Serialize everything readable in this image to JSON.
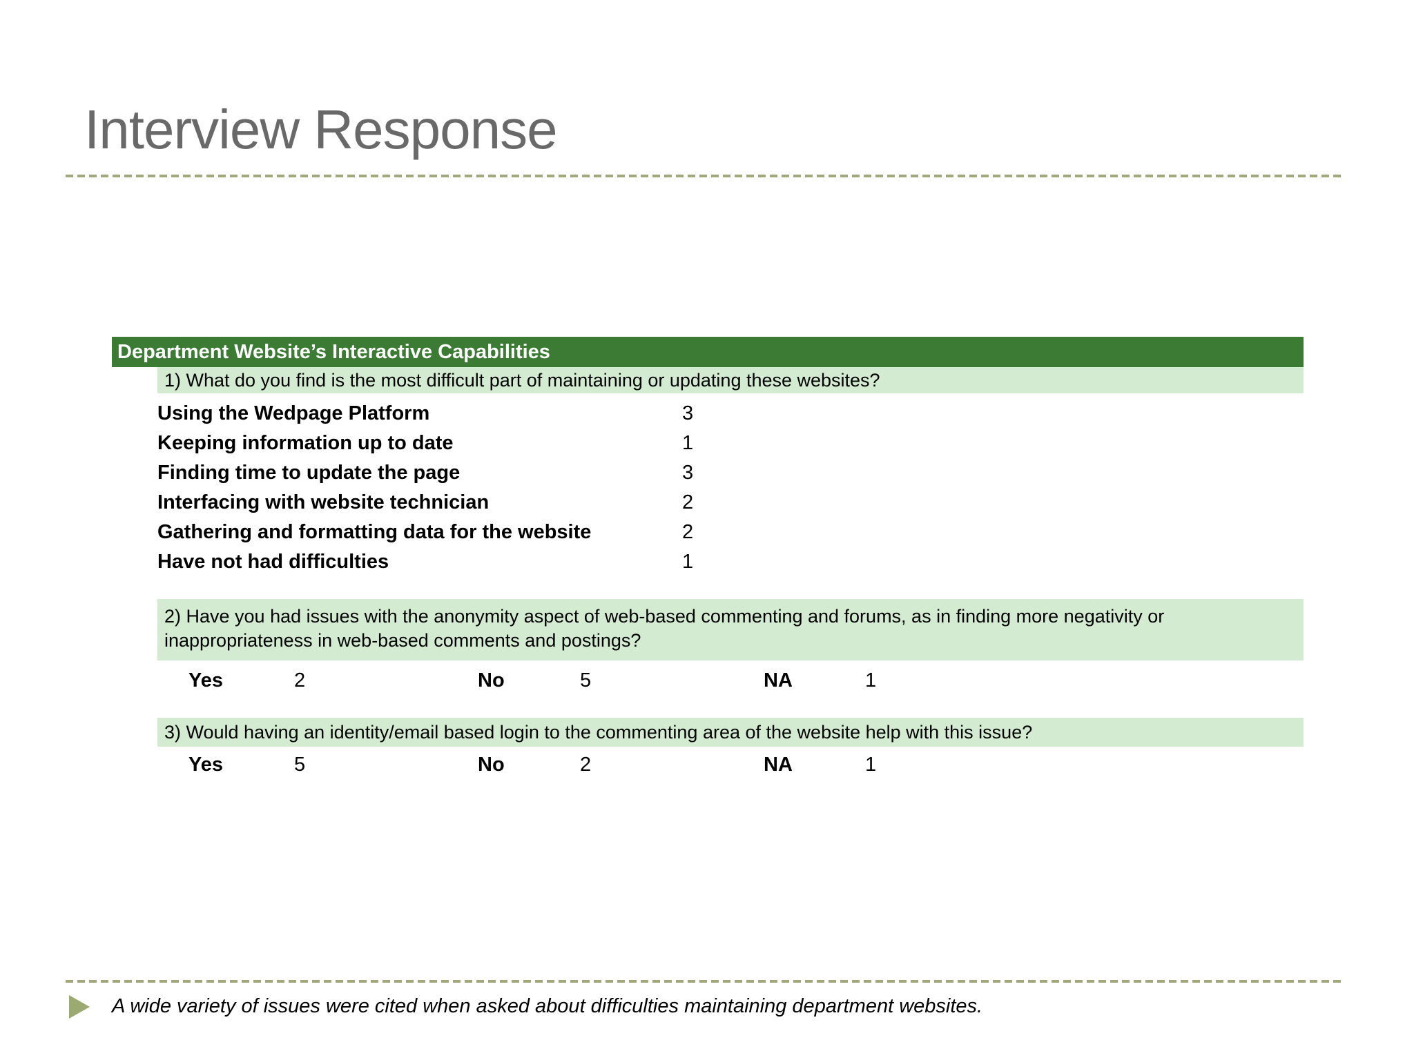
{
  "title": "Interview Response",
  "table": {
    "header": "Department Website’s Interactive Capabilities",
    "q1": {
      "question": "1) What do you find is the most difficult part of maintaining or updating these websites?",
      "rows": [
        {
          "label": "Using the Wedpage Platform",
          "count": "3"
        },
        {
          "label": "Keeping information up to date",
          "count": "1"
        },
        {
          "label": "Finding time to update the page",
          "count": "3"
        },
        {
          "label": "Interfacing with website technician",
          "count": "2"
        },
        {
          "label": "Gathering and formatting data for the website",
          "count": "2"
        },
        {
          "label": "Have not had difficulties",
          "count": "1"
        }
      ]
    },
    "q2": {
      "question": "2) Have you had issues with the anonymity aspect of web-based commenting and forums, as in finding more negativity or inappropriateness in web-based comments and postings?",
      "answers": [
        {
          "label": "Yes",
          "count": "2"
        },
        {
          "label": "No",
          "count": "5"
        },
        {
          "label": "NA",
          "count": "1"
        }
      ]
    },
    "q3": {
      "question": "3) Would having an identity/email based login to the commenting area of the website help with this issue?",
      "answers": [
        {
          "label": "Yes",
          "count": "5"
        },
        {
          "label": "No",
          "count": "2"
        },
        {
          "label": "NA",
          "count": "1"
        }
      ]
    }
  },
  "footer": {
    "bullet_icon": "triangle-right-icon",
    "text": "A wide variety of issues were cited when asked about difficulties maintaining department websites."
  },
  "colors": {
    "table_header_green": "#3c7b33",
    "question_band_green": "#d3ecd1",
    "dashed_divider": "#a2a77c",
    "bullet_triangle": "#9aaa70",
    "title_gray": "#696969"
  }
}
